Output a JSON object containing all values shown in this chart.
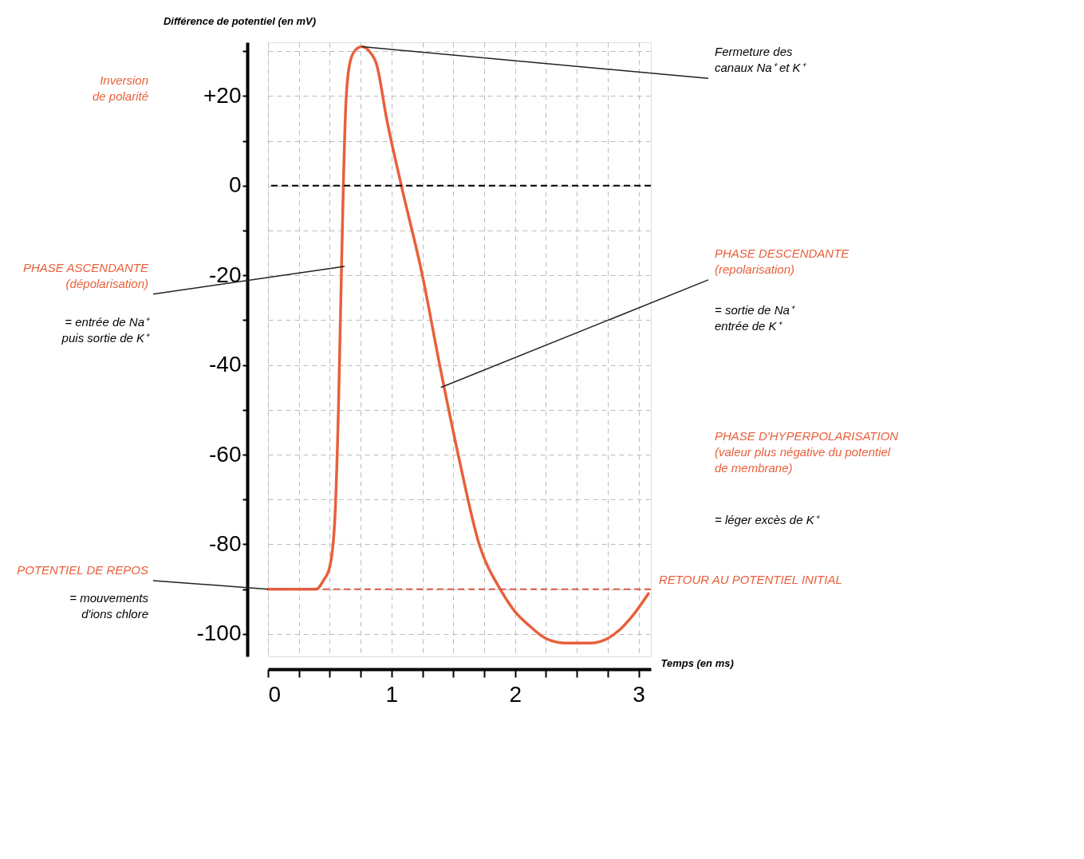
{
  "chart_data": {
    "type": "line",
    "xlabel": "Temps (en ms)",
    "ylabel": "Différence de potentiel (en mV)",
    "x": [
      0,
      0.2,
      0.39,
      0.45,
      0.5,
      0.54,
      0.57,
      0.59,
      0.61,
      0.63,
      0.66,
      0.7,
      0.76,
      0.82,
      0.88,
      0.96,
      1.08,
      1.25,
      1.39,
      1.54,
      1.71,
      1.88,
      2.0,
      2.11,
      2.25,
      2.4,
      2.62,
      2.75,
      2.85,
      2.95,
      3.08
    ],
    "series": [
      {
        "color": "#e8603c",
        "values": [
          -90,
          -90,
          -90,
          -88,
          -85,
          -75,
          -50,
          -25,
          0,
          18,
          27,
          30,
          31,
          30,
          27,
          15,
          0,
          -20,
          -40,
          -60,
          -80,
          -90,
          -95,
          -98,
          -101,
          -102,
          -102,
          -101,
          -99,
          -96,
          -91
        ]
      }
    ],
    "xlim": [
      0,
      3.1
    ],
    "ylim": [
      -105,
      32
    ],
    "xticks": [
      0,
      {
        "value": 0.25,
        "label": null
      },
      {
        "value": 0.5,
        "label": null
      },
      {
        "value": 0.75,
        "label": null
      },
      1,
      {
        "value": 1.25,
        "label": null
      },
      {
        "value": 1.5,
        "label": null
      },
      {
        "value": 1.75,
        "label": null
      },
      2,
      {
        "value": 2.25,
        "label": null
      },
      {
        "value": 2.5,
        "label": null
      },
      {
        "value": 2.75,
        "label": null
      },
      3
    ],
    "yticks": [
      -100,
      {
        "value": -90,
        "label": null
      },
      -80,
      {
        "value": -70,
        "label": null
      },
      -60,
      {
        "value": -50,
        "label": null
      },
      -40,
      {
        "value": -30,
        "label": null
      },
      -20,
      {
        "value": -10,
        "label": null
      },
      0,
      {
        "value": 10,
        "label": null
      },
      {
        "value": 20,
        "label": "+20"
      },
      {
        "value": 30,
        "label": null
      }
    ],
    "grid": true,
    "line_style": "solid",
    "marker": "none",
    "ref_lines": [
      {
        "axis": "y",
        "value": 0,
        "color": "#000000",
        "line_style": "dashed"
      },
      {
        "axis": "y",
        "value": -90,
        "color": "#e05a4a",
        "line_style": "dashed",
        "label": "RETOUR AU POTENTIEL INITIAL"
      }
    ],
    "annotations": [
      "Inversion\nde polarité",
      {
        "text": "Fermeture des\ncanaux Na⁺ et K⁺",
        "x": 0.76,
        "y": 31
      },
      {
        "text": "PHASE ASCENDANTE\n(dépolarisation)",
        "x": 0.62,
        "y": -18
      },
      "= entrée de Na⁺\npuis sortie de K⁺",
      {
        "text": "PHASE DESCENDANTE\n(repolarisation)",
        "x": 1.4,
        "y": -45
      },
      "= sortie de Na⁺\nentrée de K⁺",
      "PHASE D'HYPERPOLARISATION\n(valeur plus négative du potentiel\nde membrane)",
      "= léger excès de K⁺",
      {
        "text": "POTENTIEL DE REPOS",
        "x": 0,
        "y": -90
      },
      "= mouvements\nd'ions chlore"
    ]
  }
}
